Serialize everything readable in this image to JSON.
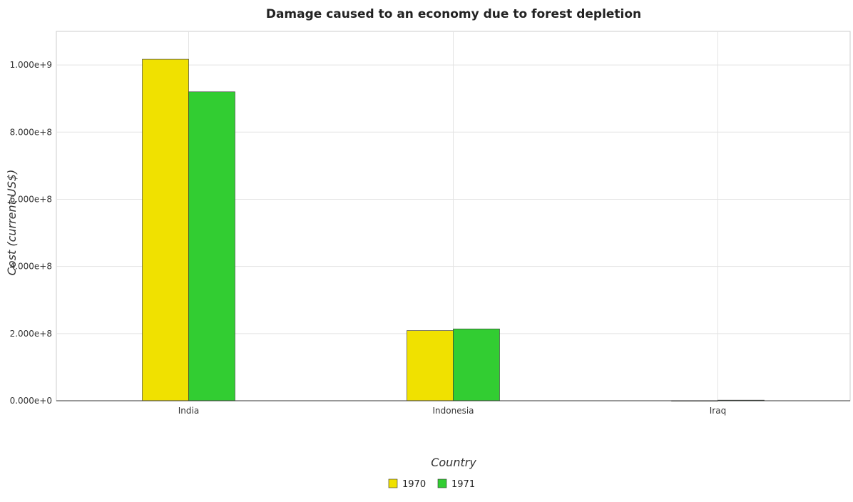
{
  "chart_data": {
    "type": "bar",
    "title": "Damage caused to an economy due to forest depletion",
    "xlabel": "Country",
    "ylabel": "Cost (current US$)",
    "categories": [
      "India",
      "Indonesia",
      "Iraq"
    ],
    "series": [
      {
        "name": "1970",
        "color": "#f0e100",
        "values": [
          1017000000,
          209000000,
          500000
        ]
      },
      {
        "name": "1971",
        "color": "#32cd32",
        "values": [
          920000000,
          214000000,
          1800000
        ]
      }
    ],
    "ylim": [
      0,
      1100000000
    ],
    "yticks": [
      0,
      200000000,
      400000000,
      600000000,
      800000000,
      1000000000
    ],
    "ytick_labels": [
      "0.000e+0",
      "2.000e+8",
      "4.000e+8",
      "6.000e+8",
      "8.000e+8",
      "1.000e+9"
    ],
    "grid": true,
    "legend_position": "bottom-center"
  }
}
